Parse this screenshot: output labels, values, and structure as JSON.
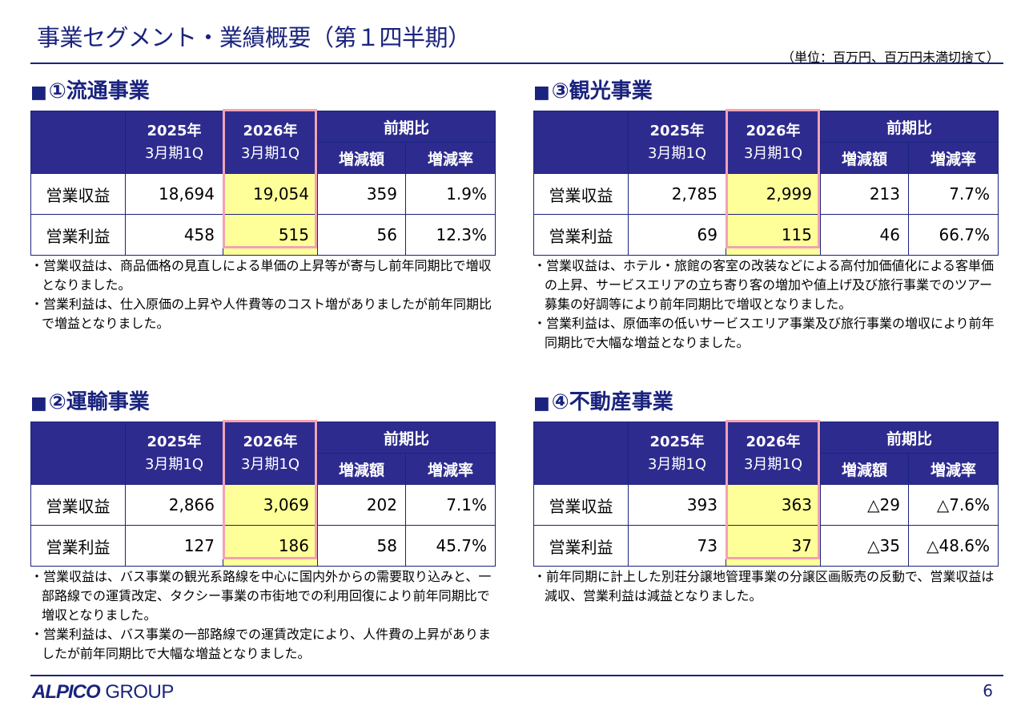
{
  "header": {
    "title": "事業セグメント・業績概要（第１四半期）",
    "unit_note": "（単位：百万円、百万円未満切捨て）"
  },
  "table_headers": {
    "y2025_year": "2025年",
    "y2025_term": "3月期1Q",
    "y2026_year": "2026年",
    "y2026_term": "3月期1Q",
    "yoy": "前期比",
    "diff": "増減額",
    "rate": "増減率"
  },
  "segments": [
    {
      "marker": "■",
      "title": "①流通事業",
      "rows": [
        {
          "label": "営業収益",
          "prev": "18,694",
          "curr": "19,054",
          "diff": "359",
          "rate": "1.9%"
        },
        {
          "label": "営業利益",
          "prev": "458",
          "curr": "515",
          "diff": "56",
          "rate": "12.3%"
        }
      ],
      "notes": [
        "・営業収益は、商品価格の見直しによる単価の上昇等が寄与し前年同期比で増収となりました。",
        "・営業利益は、仕入原価の上昇や人件費等のコスト増がありましたが前年同期比で増益となりました。"
      ]
    },
    {
      "marker": "■",
      "title": "②運輸事業",
      "rows": [
        {
          "label": "営業収益",
          "prev": "2,866",
          "curr": "3,069",
          "diff": "202",
          "rate": "7.1%"
        },
        {
          "label": "営業利益",
          "prev": "127",
          "curr": "186",
          "diff": "58",
          "rate": "45.7%"
        }
      ],
      "notes": [
        "・営業収益は、バス事業の観光系路線を中心に国内外からの需要取り込みと、一部路線での運賃改定、タクシー事業の市街地での利用回復により前年同期比で増収となりました。",
        "・営業利益は、バス事業の一部路線での運賃改定により、人件費の上昇がありましたが前年同期比で大幅な増益となりました。"
      ]
    },
    {
      "marker": "■",
      "title": "③観光事業",
      "rows": [
        {
          "label": "営業収益",
          "prev": "2,785",
          "curr": "2,999",
          "diff": "213",
          "rate": "7.7%"
        },
        {
          "label": "営業利益",
          "prev": "69",
          "curr": "115",
          "diff": "46",
          "rate": "66.7%"
        }
      ],
      "notes": [
        "・営業収益は、ホテル・旅館の客室の改装などによる高付加価値化による客単価の上昇、サービスエリアの立ち寄り客の増加や値上げ及び旅行事業でのツアー募集の好調等により前年同期比で増収となりました。",
        "・営業利益は、原価率の低いサービスエリア事業及び旅行事業の増収により前年同期比で大幅な増益となりました。"
      ]
    },
    {
      "marker": "■",
      "title": "④不動産事業",
      "rows": [
        {
          "label": "営業収益",
          "prev": "393",
          "curr": "363",
          "diff": "△29",
          "rate": "△7.6%"
        },
        {
          "label": "営業利益",
          "prev": "73",
          "curr": "37",
          "diff": "△35",
          "rate": "△48.6%"
        }
      ],
      "notes": [
        "・前年同期に計上した別荘分譲地管理事業の分譲区画販売の反動で、営業収益は減収、営業利益は減益となりました。"
      ]
    }
  ],
  "footer": {
    "logo_bold": "ALPICO",
    "logo_light": "GROUP",
    "page_number": "6"
  }
}
